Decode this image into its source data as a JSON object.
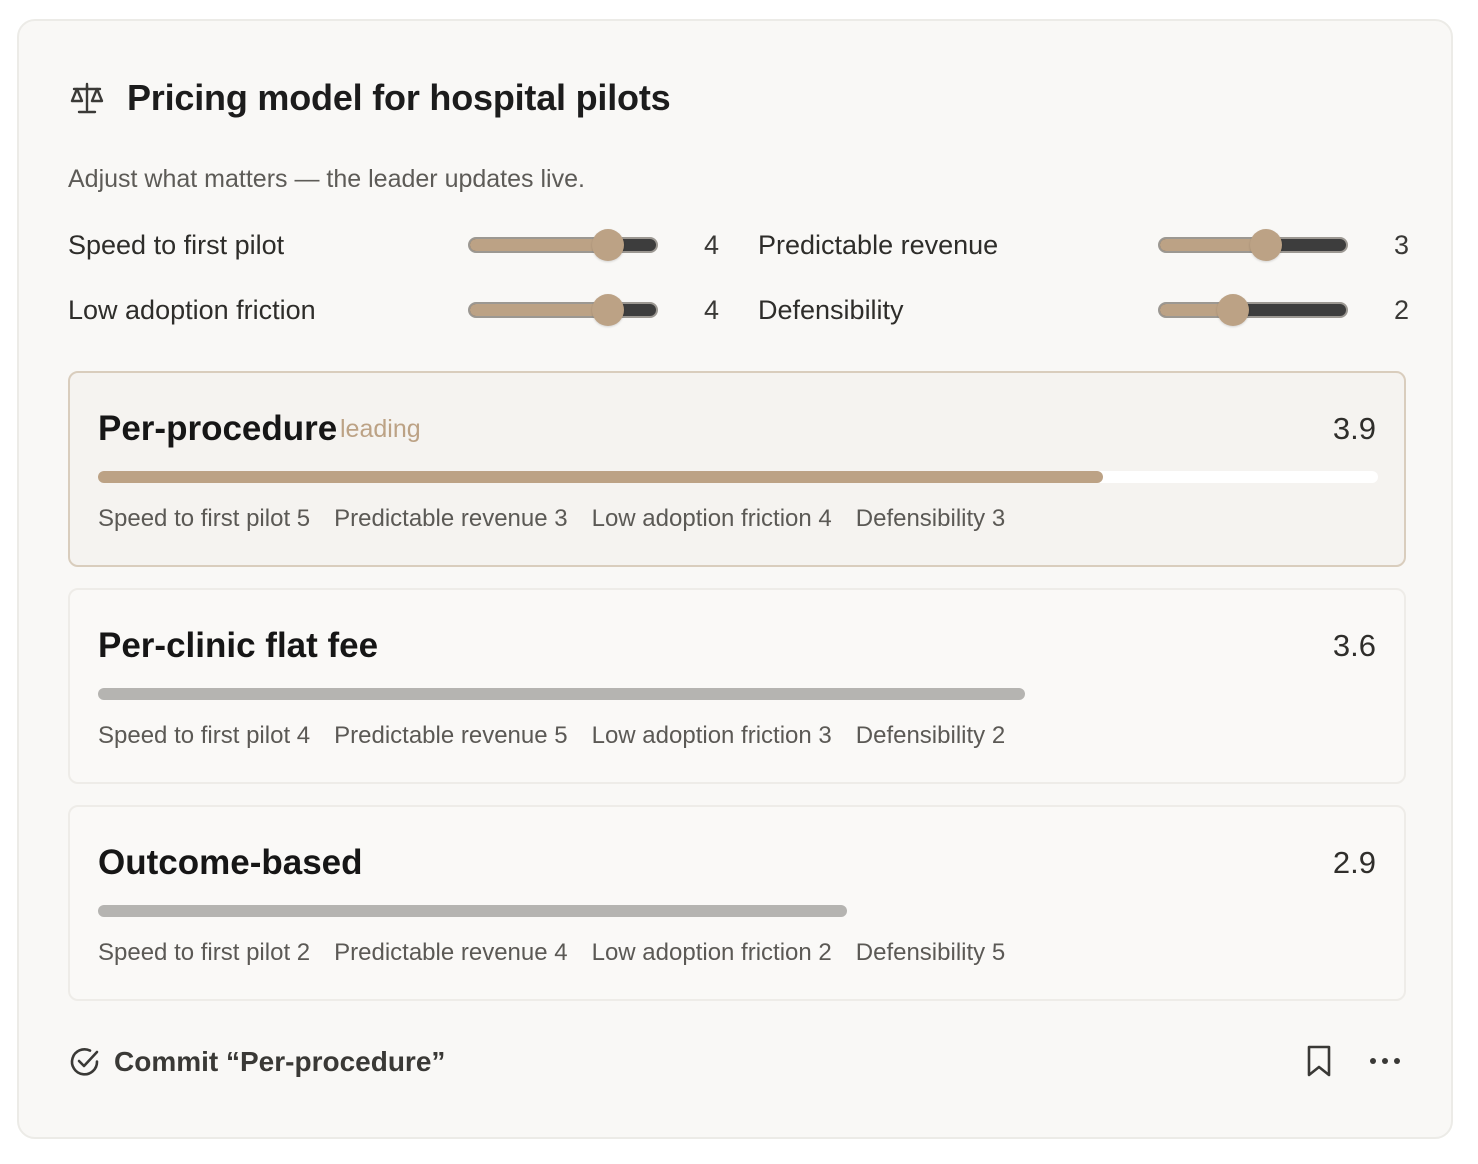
{
  "header": {
    "icon": "scale-icon",
    "title": "Pricing model for hospital pilots",
    "subtitle": "Adjust what matters — the leader updates live."
  },
  "criteria": [
    {
      "label": "Speed to first pilot",
      "value": 4,
      "max": 5
    },
    {
      "label": "Predictable revenue",
      "value": 3,
      "max": 5
    },
    {
      "label": "Low adoption friction",
      "value": 4,
      "max": 5
    },
    {
      "label": "Defensibility",
      "value": 2,
      "max": 5
    }
  ],
  "options": [
    {
      "name": "Per-procedure",
      "tag": "leading",
      "score": "3.9",
      "bar_fraction": 0.785,
      "breakdown": [
        "Speed to first pilot 5",
        "Predictable revenue 3",
        "Low adoption friction 4",
        "Defensibility 3"
      ]
    },
    {
      "name": "Per-clinic flat fee",
      "tag": "",
      "score": "3.6",
      "bar_fraction": 0.724,
      "breakdown": [
        "Speed to first pilot 4",
        "Predictable revenue 5",
        "Low adoption friction 3",
        "Defensibility 2"
      ]
    },
    {
      "name": "Outcome-based",
      "tag": "",
      "score": "2.9",
      "bar_fraction": 0.585,
      "breakdown": [
        "Speed to first pilot 2",
        "Predictable revenue 4",
        "Low adoption friction 2",
        "Defensibility 5"
      ]
    }
  ],
  "footer": {
    "commit_label": "Commit “Per-procedure”",
    "commit_icon": "check-circle-icon",
    "bookmark_icon": "bookmark-icon",
    "more_icon": "more-horizontal-icon"
  },
  "colors": {
    "accent": "#bca285",
    "bar_inactive": "#b5b4b1",
    "card_bg": "#f9f8f6"
  }
}
